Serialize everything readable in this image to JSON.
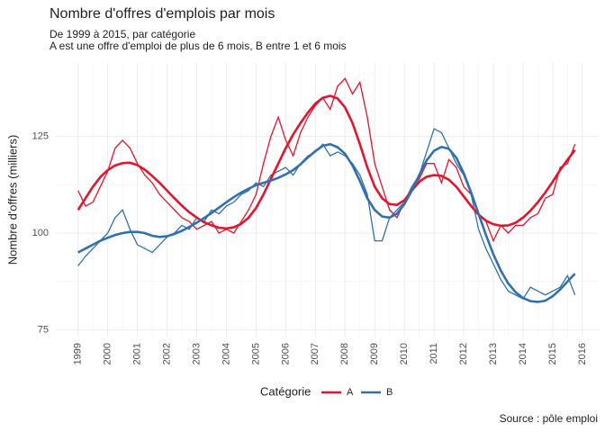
{
  "chart_data": {
    "type": "line",
    "title": "Nombre d'offres d'emplois par mois",
    "subtitle": [
      "De 1999 à 2015, par catégorie",
      "A est une offre d'emploi de plus de 6 mois, B entre 1 et 6 mois"
    ],
    "y_label": "Nombre d'offres (milliers)",
    "legend_title": "Catégorie",
    "caption": "Source : pôle emploi",
    "legend": "bottom",
    "grid": true,
    "xlim": [
      1998.25,
      2016.55
    ],
    "xticks": [
      1999,
      2000,
      2001,
      2002,
      2003,
      2004,
      2005,
      2006,
      2007,
      2008,
      2009,
      2010,
      2011,
      2012,
      2013,
      2014,
      2015,
      2016
    ],
    "ylim": [
      73,
      144
    ],
    "yticks": [
      75,
      100,
      125
    ],
    "x": [
      1999,
      1999.25,
      1999.5,
      1999.75,
      2000,
      2000.25,
      2000.5,
      2000.75,
      2001,
      2001.25,
      2001.5,
      2001.75,
      2002,
      2002.25,
      2002.5,
      2002.75,
      2003,
      2003.25,
      2003.5,
      2003.75,
      2004,
      2004.25,
      2004.5,
      2004.75,
      2005,
      2005.25,
      2005.5,
      2005.75,
      2006,
      2006.25,
      2006.5,
      2006.75,
      2007,
      2007.25,
      2007.5,
      2007.75,
      2008,
      2008.25,
      2008.5,
      2008.75,
      2009,
      2009.25,
      2009.5,
      2009.75,
      2010,
      2010.25,
      2010.5,
      2010.75,
      2011,
      2011.25,
      2011.5,
      2011.75,
      2012,
      2012.25,
      2012.5,
      2012.75,
      2013,
      2013.25,
      2013.5,
      2013.75,
      2014,
      2014.25,
      2014.5,
      2014.75,
      2015,
      2015.25,
      2015.5,
      2015.75
    ],
    "series": [
      {
        "name": "A",
        "color": "#e3142c",
        "values": [
          111,
          107,
          108,
          112,
          116,
          122,
          124,
          122,
          118,
          115,
          113,
          110,
          108,
          106,
          104,
          103,
          101,
          102,
          103,
          100,
          101,
          100,
          103,
          106,
          110,
          118,
          125,
          130,
          124,
          120,
          126,
          130,
          133,
          135,
          132,
          138,
          140,
          136,
          139,
          130,
          118,
          112,
          106,
          104,
          108,
          112,
          114,
          118,
          118,
          113,
          119,
          117,
          112,
          110,
          105,
          103,
          98,
          102,
          100,
          102,
          102,
          104,
          105,
          109,
          110,
          117,
          118,
          123
        ],
        "trend": [
          106,
          109,
          112,
          114.5,
          116.3,
          117.5,
          118.1,
          118.2,
          117.6,
          116.4,
          114.8,
          113,
          111,
          109,
          107.1,
          105.4,
          104,
          102.8,
          102,
          101.4,
          101.2,
          101.5,
          102.4,
          104,
          106.5,
          110,
          114,
          118,
          122,
          125.5,
          128.5,
          131.2,
          133.5,
          135,
          135.5,
          134.8,
          132.5,
          128.5,
          123,
          117,
          112,
          109,
          107.5,
          107.3,
          108.5,
          111,
          113.3,
          114.6,
          115,
          114.8,
          113.8,
          112,
          109.5,
          107,
          104.8,
          103.2,
          102.3,
          101.9,
          102,
          102.7,
          104,
          105.8,
          108,
          110.5,
          113.3,
          116.3,
          119,
          121.5
        ]
      },
      {
        "name": "B",
        "color": "#3070ad",
        "values": [
          91.5,
          94,
          96,
          98,
          100,
          104,
          106,
          101,
          97,
          96,
          95,
          97,
          99,
          100,
          102,
          101,
          104,
          103,
          106,
          105,
          107,
          108,
          110,
          111,
          113,
          112,
          115,
          116,
          117,
          115,
          118,
          120,
          121,
          123,
          120,
          121,
          120,
          118,
          115,
          110,
          98,
          98,
          104,
          106,
          108,
          112,
          115,
          121,
          127,
          126,
          122,
          118,
          115,
          110,
          101,
          96,
          92,
          88,
          85,
          84,
          83,
          86,
          85,
          84,
          85,
          86,
          89,
          84
        ],
        "trend": [
          95,
          96,
          97,
          98,
          98.8,
          99.5,
          100,
          100.3,
          100.3,
          100,
          99.3,
          99,
          99.2,
          99.8,
          100.6,
          101.6,
          102.7,
          103.9,
          105.2,
          106.6,
          108,
          109.3,
          110.5,
          111.5,
          112.4,
          113,
          113.6,
          114.3,
          115.2,
          116.3,
          117.8,
          119.6,
          121.2,
          122.6,
          123,
          122.2,
          120.5,
          117.5,
          113.5,
          109,
          106,
          104.3,
          104,
          105,
          107.5,
          111,
          115,
          118.8,
          121.3,
          122.3,
          121.8,
          119.5,
          115.5,
          110.5,
          105,
          99.5,
          94.5,
          90.3,
          87,
          84.7,
          83.2,
          82.4,
          82.2,
          82.5,
          83.7,
          85.4,
          87.5,
          89.5
        ]
      }
    ]
  }
}
